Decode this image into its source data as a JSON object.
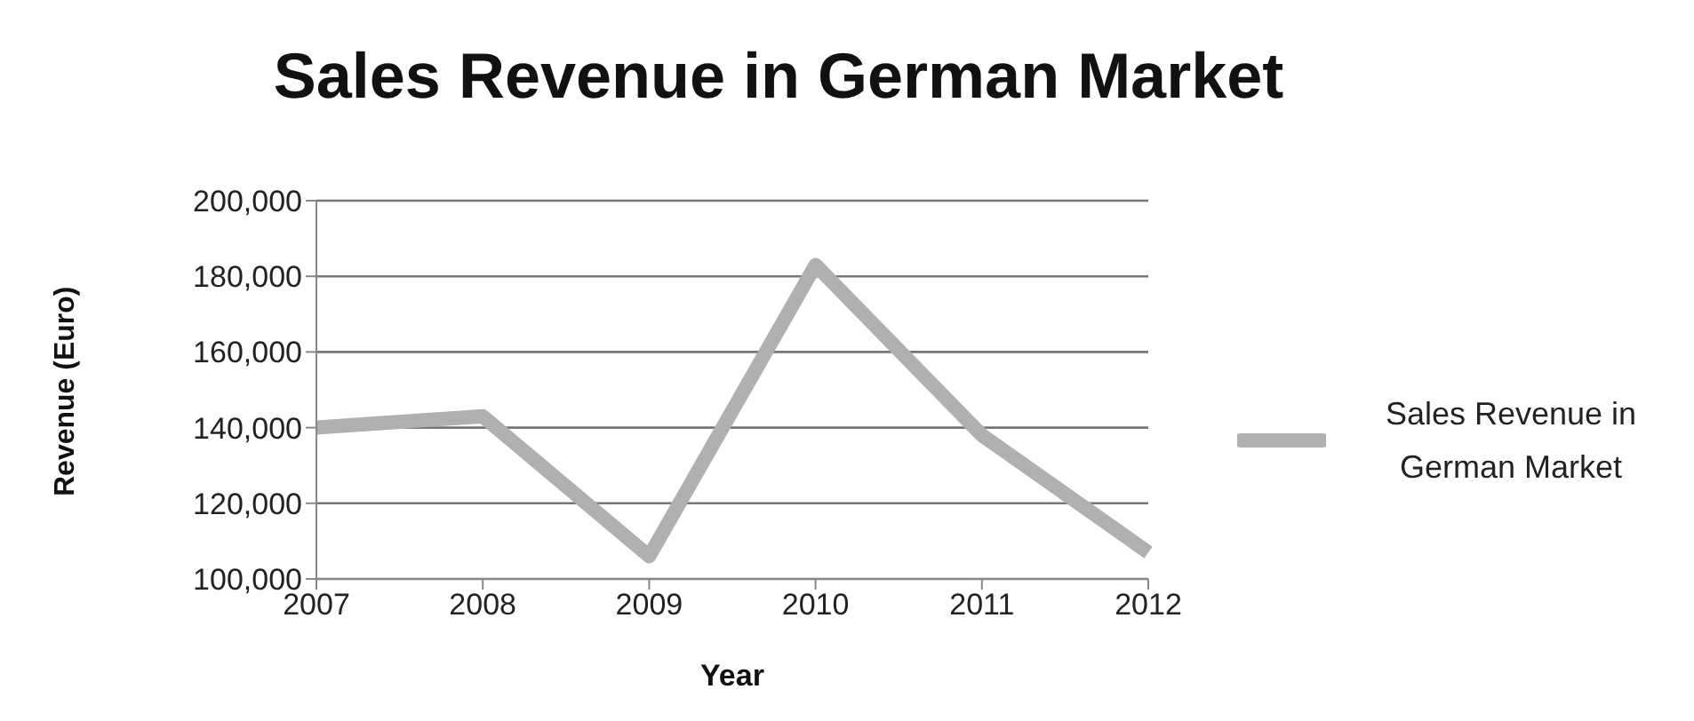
{
  "chart_data": {
    "type": "line",
    "title": "Sales Revenue in German Market",
    "xlabel": "Year",
    "ylabel": "Revenue (Euro)",
    "categories": [
      "2007",
      "2008",
      "2009",
      "2010",
      "2011",
      "2012"
    ],
    "series": [
      {
        "name": "Sales Revenue in German Market",
        "color": "#b0b0b0",
        "values": [
          140000,
          143000,
          106000,
          183000,
          138000,
          107000
        ]
      }
    ],
    "ylim": [
      100000,
      200000
    ],
    "yticks": [
      {
        "value": 100000,
        "label": "100,000"
      },
      {
        "value": 120000,
        "label": "120,000"
      },
      {
        "value": 140000,
        "label": "140,000"
      },
      {
        "value": 160000,
        "label": "160,000"
      },
      {
        "value": 180000,
        "label": "180,000"
      },
      {
        "value": 200000,
        "label": "200,000"
      }
    ],
    "grid": "y",
    "legend": "right",
    "marker": "none",
    "line_style": "solid"
  }
}
